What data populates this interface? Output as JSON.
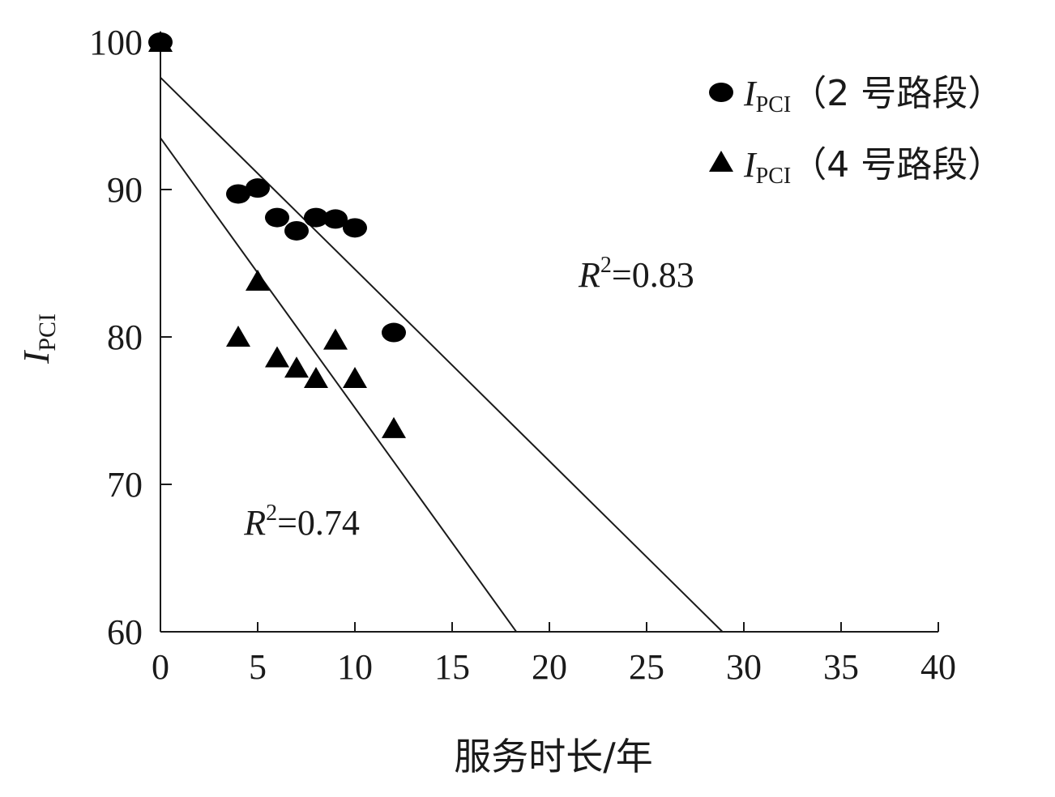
{
  "chart_data": {
    "type": "scatter",
    "xlabel": "服务时长/年",
    "ylabel_main": "I",
    "ylabel_sub": "PCI",
    "xlim": [
      0,
      40
    ],
    "ylim": [
      60,
      100
    ],
    "xticks": [
      "0",
      "5",
      "10",
      "15",
      "20",
      "25",
      "30",
      "35",
      "40"
    ],
    "yticks": [
      "60",
      "70",
      "80",
      "90",
      "100"
    ],
    "grid": false,
    "legend_position": "top-right",
    "series": [
      {
        "name_main": "I",
        "name_sub": "PCI",
        "name_suffix": "（2 号路段）",
        "marker": "circle",
        "x": [
          0,
          4,
          5,
          6,
          7,
          8,
          9,
          10,
          12
        ],
        "y": [
          100,
          89.7,
          90.1,
          88.1,
          87.2,
          88.1,
          88.0,
          87.4,
          80.3
        ],
        "fit": {
          "x": [
            0,
            28.9
          ],
          "y": [
            97.6,
            60
          ]
        }
      },
      {
        "name_main": "I",
        "name_sub": "PCI",
        "name_suffix": "（4 号路段）",
        "marker": "triangle",
        "x": [
          0,
          4,
          5,
          6,
          7,
          8,
          9,
          10,
          12
        ],
        "y": [
          100,
          80.0,
          83.8,
          78.6,
          77.9,
          77.2,
          79.8,
          77.2,
          73.8
        ],
        "fit": {
          "x": [
            0,
            18.3
          ],
          "y": [
            93.5,
            60
          ]
        }
      }
    ],
    "annotations": [
      {
        "series": 0,
        "main": "R",
        "sup": "2",
        "rest": "=0.83",
        "x": 21.5,
        "y": 83.4
      },
      {
        "series": 1,
        "main": "R",
        "sup": "2",
        "rest": "=0.74",
        "x": 4.3,
        "y": 66.6
      }
    ]
  }
}
